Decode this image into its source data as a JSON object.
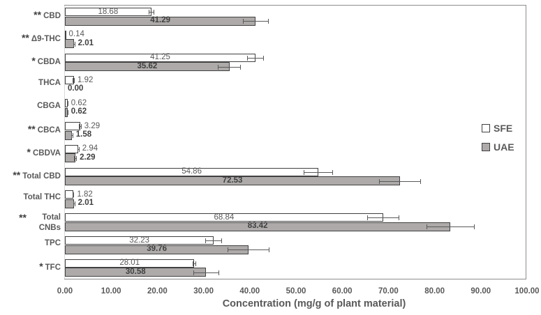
{
  "chart_data": {
    "type": "bar",
    "orientation": "horizontal",
    "title": "",
    "xlabel": "Concentration (mg/g of plant material)",
    "ylabel": "",
    "xlim": [
      0,
      100
    ],
    "x_ticks": [
      "0.00",
      "10.00",
      "20.00",
      "30.00",
      "40.00",
      "50.00",
      "60.00",
      "70.00",
      "80.00",
      "90.00",
      "100.00"
    ],
    "grid": false,
    "legend_position": "right",
    "categories": [
      "CBD",
      "Δ9-THC",
      "CBDA",
      "THCA",
      "CBGA",
      "CBCA",
      "CBDVA",
      "Total CBD",
      "Total THC",
      "Total CNBs",
      "TPC",
      "TFC"
    ],
    "significance": [
      "**",
      "**",
      "*",
      "",
      "",
      "**",
      "*",
      "**",
      "",
      "**",
      "",
      "*"
    ],
    "series": [
      {
        "name": "SFE",
        "color": "#ffffff",
        "values": [
          18.68,
          0.14,
          41.25,
          1.92,
          0.62,
          3.29,
          2.94,
          54.86,
          1.82,
          68.84,
          32.23,
          28.01
        ],
        "labels": [
          "18.68",
          "0.14",
          "41.25",
          "1.92",
          "0.62",
          "3.29",
          "2.94",
          "54.86",
          "1.82",
          "68.84",
          "32.23",
          "28.01"
        ],
        "errors": [
          0.6,
          0.0,
          1.8,
          0.2,
          0.1,
          0.3,
          0.2,
          3.2,
          0.2,
          3.5,
          1.8,
          0.4
        ]
      },
      {
        "name": "UAE",
        "color": "#aeaaaa",
        "values": [
          41.29,
          2.01,
          35.62,
          0.0,
          0.62,
          1.58,
          2.29,
          72.53,
          2.01,
          83.42,
          39.76,
          30.58
        ],
        "labels": [
          "41.29",
          "2.01",
          "35.62",
          "0.00",
          "0.62",
          "1.58",
          "2.29",
          "72.53",
          "2.01",
          "83.42",
          "39.76",
          "30.58"
        ],
        "errors": [
          2.8,
          0.2,
          2.5,
          0.0,
          0.1,
          0.2,
          0.3,
          4.5,
          0.2,
          5.2,
          4.5,
          2.8
        ]
      }
    ]
  },
  "legend": {
    "items": [
      {
        "label": "SFE",
        "color": "#ffffff"
      },
      {
        "label": "UAE",
        "color": "#aeaaaa"
      }
    ]
  }
}
